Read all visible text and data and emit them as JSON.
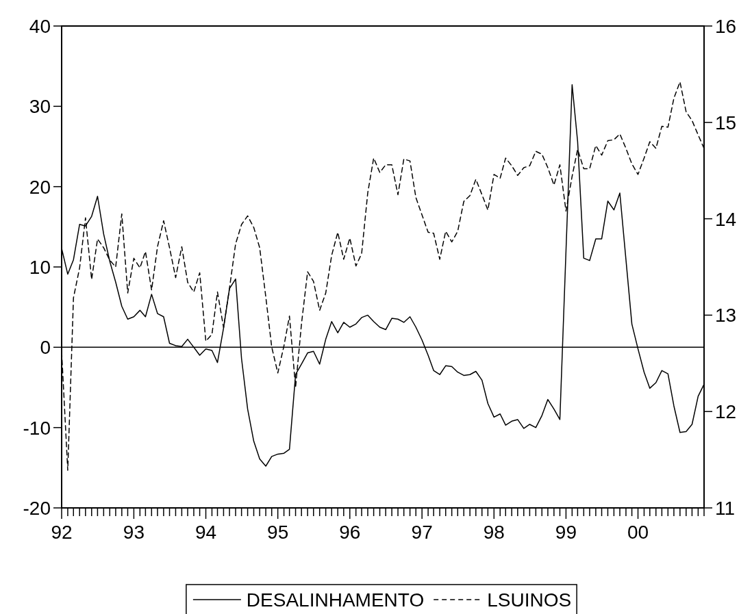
{
  "chart_data": {
    "type": "line",
    "x": [
      "1992-01",
      "1992-02",
      "1992-03",
      "1992-04",
      "1992-05",
      "1992-06",
      "1992-07",
      "1992-08",
      "1992-09",
      "1992-10",
      "1992-11",
      "1992-12",
      "1993-01",
      "1993-02",
      "1993-03",
      "1993-04",
      "1993-05",
      "1993-06",
      "1993-07",
      "1993-08",
      "1993-09",
      "1993-10",
      "1993-11",
      "1993-12",
      "1994-01",
      "1994-02",
      "1994-03",
      "1994-04",
      "1994-05",
      "1994-06",
      "1994-07",
      "1994-08",
      "1994-09",
      "1994-10",
      "1994-11",
      "1994-12",
      "1995-01",
      "1995-02",
      "1995-03",
      "1995-04",
      "1995-05",
      "1995-06",
      "1995-07",
      "1995-08",
      "1995-09",
      "1995-10",
      "1995-11",
      "1995-12",
      "1996-01",
      "1996-02",
      "1996-03",
      "1996-04",
      "1996-05",
      "1996-06",
      "1996-07",
      "1996-08",
      "1996-09",
      "1996-10",
      "1996-11",
      "1996-12",
      "1997-01",
      "1997-02",
      "1997-03",
      "1997-04",
      "1997-05",
      "1997-06",
      "1997-07",
      "1997-08",
      "1997-09",
      "1997-10",
      "1997-11",
      "1997-12",
      "1998-01",
      "1998-02",
      "1998-03",
      "1998-04",
      "1998-05",
      "1998-06",
      "1998-07",
      "1998-08",
      "1998-09",
      "1998-10",
      "1998-11",
      "1998-12",
      "1999-01",
      "1999-02",
      "1999-03",
      "1999-04",
      "1999-05",
      "1999-06",
      "1999-07",
      "1999-08",
      "1999-09",
      "1999-10",
      "1999-11",
      "1999-12",
      "2000-01",
      "2000-02",
      "2000-03",
      "2000-04",
      "2000-05",
      "2000-06",
      "2000-07",
      "2000-08",
      "2000-09",
      "2000-10",
      "2000-11",
      "2000-12"
    ],
    "series": [
      {
        "name": "DESALINHAMENTO",
        "color": "#000000",
        "line_style": "solid",
        "values": [
          12.3,
          9.1,
          10.9,
          15.3,
          15.1,
          16.3,
          18.8,
          14.1,
          10.7,
          8.1,
          5.1,
          3.5,
          3.8,
          4.6,
          3.8,
          6.6,
          4.2,
          3.8,
          0.5,
          0.2,
          0.1,
          1.0,
          0,
          -1.0,
          -0.2,
          -0.4,
          -1.9,
          2.4,
          7.3,
          8.5,
          -1.4,
          -7.7,
          -11.7,
          -13.9,
          -14.8,
          -13.6,
          -13.3,
          -13.2,
          -12.7,
          -3.4,
          -2.1,
          -0.7,
          -0.5,
          -2.1,
          1.0,
          3.2,
          1.8,
          3.1,
          2.5,
          2.9,
          3.7,
          4.0,
          3.2,
          2.5,
          2.2,
          3.6,
          3.5,
          3.1,
          3.8,
          2.5,
          0.9,
          -1.0,
          -2.9,
          -3.4,
          -2.3,
          -2.4,
          -3.1,
          -3.5,
          -3.4,
          -3.0,
          -4.1,
          -7.0,
          -8.7,
          -8.3,
          -9.7,
          -9.2,
          -9.0,
          -10.1,
          -9.6,
          -10.0,
          -8.5,
          -6.5,
          -7.7,
          -9.0,
          12,
          32.7,
          25.6,
          11.1,
          10.8,
          13.5,
          13.5,
          18.2,
          17.1,
          19.2,
          10.9,
          2.9,
          -0.2,
          -3.1,
          -5.1,
          -4.4,
          -2.9,
          -3.3,
          -7.3,
          -10.6,
          -10.5,
          -9.6,
          -6.1,
          -4.6
        ]
      },
      {
        "name": "LSUINOS",
        "color": "#000000",
        "line_style": "dashed",
        "axis": "y2",
        "values": [
          12.62,
          11.39,
          13.18,
          13.49,
          14.01,
          13.37,
          13.79,
          13.7,
          13.57,
          13.5,
          14.05,
          13.23,
          13.59,
          13.49,
          13.66,
          13.26,
          13.71,
          13.98,
          13.7,
          13.39,
          13.71,
          13.34,
          13.24,
          13.44,
          12.73,
          12.8,
          13.24,
          12.87,
          13.28,
          13.74,
          13.94,
          14.03,
          13.91,
          13.7,
          13.19,
          12.67,
          12.4,
          12.68,
          12.99,
          12.25,
          12.91,
          13.45,
          13.35,
          13.05,
          13.23,
          13.62,
          13.86,
          13.58,
          13.8,
          13.51,
          13.64,
          14.27,
          14.63,
          14.48,
          14.56,
          14.56,
          14.25,
          14.62,
          14.6,
          14.22,
          14.04,
          13.86,
          13.85,
          13.58,
          13.87,
          13.76,
          13.87,
          14.18,
          14.24,
          14.41,
          14.25,
          14.09,
          14.46,
          14.42,
          14.63,
          14.55,
          14.45,
          14.53,
          14.55,
          14.7,
          14.67,
          14.53,
          14.35,
          14.56,
          14.08,
          14.44,
          14.72,
          14.52,
          14.52,
          14.76,
          14.66,
          14.81,
          14.82,
          14.88,
          14.73,
          14.57,
          14.46,
          14.63,
          14.8,
          14.73,
          14.96,
          14.95,
          15.25,
          15.42,
          15.11,
          15.02,
          14.87,
          14.73
        ]
      }
    ],
    "xlim": [
      "1992-01",
      "2000-12"
    ],
    "xticks": [
      {
        "value": "1992-01",
        "label": "92"
      },
      {
        "value": "1992-02",
        "label": null
      },
      {
        "value": "1992-03",
        "label": null
      },
      {
        "value": "1992-04",
        "label": null
      },
      {
        "value": "1992-05",
        "label": null
      },
      {
        "value": "1992-06",
        "label": null
      },
      {
        "value": "1992-07",
        "label": null
      },
      {
        "value": "1992-08",
        "label": null
      },
      {
        "value": "1992-09",
        "label": null
      },
      {
        "value": "1992-10",
        "label": null
      },
      {
        "value": "1992-11",
        "label": null
      },
      {
        "value": "1992-12",
        "label": null
      },
      {
        "value": "1993-01",
        "label": "93"
      },
      {
        "value": "1993-02",
        "label": null
      },
      {
        "value": "1993-03",
        "label": null
      },
      {
        "value": "1993-04",
        "label": null
      },
      {
        "value": "1993-05",
        "label": null
      },
      {
        "value": "1993-06",
        "label": null
      },
      {
        "value": "1993-07",
        "label": null
      },
      {
        "value": "1993-08",
        "label": null
      },
      {
        "value": "1993-09",
        "label": null
      },
      {
        "value": "1993-10",
        "label": null
      },
      {
        "value": "1993-11",
        "label": null
      },
      {
        "value": "1993-12",
        "label": null
      },
      {
        "value": "1994-01",
        "label": "94"
      },
      {
        "value": "1994-02",
        "label": null
      },
      {
        "value": "1994-03",
        "label": null
      },
      {
        "value": "1994-04",
        "label": null
      },
      {
        "value": "1994-05",
        "label": null
      },
      {
        "value": "1994-06",
        "label": null
      },
      {
        "value": "1994-07",
        "label": null
      },
      {
        "value": "1994-08",
        "label": null
      },
      {
        "value": "1994-09",
        "label": null
      },
      {
        "value": "1994-10",
        "label": null
      },
      {
        "value": "1994-11",
        "label": null
      },
      {
        "value": "1994-12",
        "label": null
      },
      {
        "value": "1995-01",
        "label": "95"
      },
      {
        "value": "1995-02",
        "label": null
      },
      {
        "value": "1995-03",
        "label": null
      },
      {
        "value": "1995-04",
        "label": null
      },
      {
        "value": "1995-05",
        "label": null
      },
      {
        "value": "1995-06",
        "label": null
      },
      {
        "value": "1995-07",
        "label": null
      },
      {
        "value": "1995-08",
        "label": null
      },
      {
        "value": "1995-09",
        "label": null
      },
      {
        "value": "1995-10",
        "label": null
      },
      {
        "value": "1995-11",
        "label": null
      },
      {
        "value": "1995-12",
        "label": null
      },
      {
        "value": "1996-01",
        "label": "96"
      },
      {
        "value": "1996-02",
        "label": null
      },
      {
        "value": "1996-03",
        "label": null
      },
      {
        "value": "1996-04",
        "label": null
      },
      {
        "value": "1996-05",
        "label": null
      },
      {
        "value": "1996-06",
        "label": null
      },
      {
        "value": "1996-07",
        "label": null
      },
      {
        "value": "1996-08",
        "label": null
      },
      {
        "value": "1996-09",
        "label": null
      },
      {
        "value": "1996-10",
        "label": null
      },
      {
        "value": "1996-11",
        "label": null
      },
      {
        "value": "1996-12",
        "label": null
      },
      {
        "value": "1997-01",
        "label": "97"
      },
      {
        "value": "1997-02",
        "label": null
      },
      {
        "value": "1997-03",
        "label": null
      },
      {
        "value": "1997-04",
        "label": null
      },
      {
        "value": "1997-05",
        "label": null
      },
      {
        "value": "1997-06",
        "label": null
      },
      {
        "value": "1997-07",
        "label": null
      },
      {
        "value": "1997-08",
        "label": null
      },
      {
        "value": "1997-09",
        "label": null
      },
      {
        "value": "1997-10",
        "label": null
      },
      {
        "value": "1997-11",
        "label": null
      },
      {
        "value": "1997-12",
        "label": null
      },
      {
        "value": "1998-01",
        "label": "98"
      },
      {
        "value": "1998-02",
        "label": null
      },
      {
        "value": "1998-03",
        "label": null
      },
      {
        "value": "1998-04",
        "label": null
      },
      {
        "value": "1998-05",
        "label": null
      },
      {
        "value": "1998-06",
        "label": null
      },
      {
        "value": "1998-07",
        "label": null
      },
      {
        "value": "1998-08",
        "label": null
      },
      {
        "value": "1998-09",
        "label": null
      },
      {
        "value": "1998-10",
        "label": null
      },
      {
        "value": "1998-11",
        "label": null
      },
      {
        "value": "1998-12",
        "label": null
      },
      {
        "value": "1999-01",
        "label": "99"
      },
      {
        "value": "1999-02",
        "label": null
      },
      {
        "value": "1999-03",
        "label": null
      },
      {
        "value": "1999-04",
        "label": null
      },
      {
        "value": "1999-05",
        "label": null
      },
      {
        "value": "1999-06",
        "label": null
      },
      {
        "value": "1999-07",
        "label": null
      },
      {
        "value": "1999-08",
        "label": null
      },
      {
        "value": "1999-09",
        "label": null
      },
      {
        "value": "1999-10",
        "label": null
      },
      {
        "value": "1999-11",
        "label": null
      },
      {
        "value": "1999-12",
        "label": null
      },
      {
        "value": "2000-01",
        "label": "00"
      },
      {
        "value": "2000-02",
        "label": null
      },
      {
        "value": "2000-03",
        "label": null
      },
      {
        "value": "2000-04",
        "label": null
      },
      {
        "value": "2000-05",
        "label": null
      },
      {
        "value": "2000-06",
        "label": null
      },
      {
        "value": "2000-07",
        "label": null
      },
      {
        "value": "2000-08",
        "label": null
      },
      {
        "value": "2000-09",
        "label": null
      },
      {
        "value": "2000-10",
        "label": null
      },
      {
        "value": "2000-11",
        "label": null
      },
      {
        "value": "2000-12",
        "label": null
      }
    ],
    "ylim": [
      -20,
      40
    ],
    "yticks": [
      -20,
      -10,
      0,
      10,
      20,
      30,
      40
    ],
    "y2lim": [
      11,
      16
    ],
    "y2ticks": [
      11,
      12,
      13,
      14,
      15,
      16
    ],
    "ref_lines": [
      {
        "axis": "y",
        "value": 0
      }
    ],
    "grid": false,
    "legend": "bottom",
    "marker": "none"
  }
}
